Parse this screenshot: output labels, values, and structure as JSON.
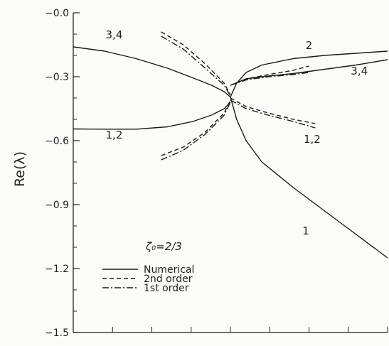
{
  "chart_data": {
    "type": "line",
    "title": "",
    "xlabel": "",
    "ylabel": "Re(λ)",
    "ylim": [
      -1.5,
      0.0
    ],
    "yticks": [
      0.0,
      -0.3,
      -0.6,
      -0.9,
      -1.2,
      -1.5
    ],
    "ytick_labels": [
      "−0.0",
      "−0.3",
      "−0.6",
      "−0.9",
      "−1.2",
      "−1.5"
    ],
    "xlim": [
      0,
      1
    ],
    "x_minor_ticks": 8,
    "annotation": "ζ₀=2/3",
    "legend": {
      "position": "lower-left",
      "entries": [
        {
          "label": "Numerical",
          "style": "solid"
        },
        {
          "label": "2nd order",
          "style": "dashed"
        },
        {
          "label": "1st order",
          "style": "dashdot"
        }
      ]
    },
    "curve_labels": [
      {
        "text": "3,4",
        "x": 0.13,
        "y": -0.12
      },
      {
        "text": "2",
        "x": 0.75,
        "y": -0.17
      },
      {
        "text": "3,4",
        "x": 0.91,
        "y": -0.29
      },
      {
        "text": "1,2",
        "x": 0.13,
        "y": -0.59
      },
      {
        "text": "1,2",
        "x": 0.76,
        "y": -0.61
      },
      {
        "text": "1",
        "x": 0.74,
        "y": -1.04
      }
    ],
    "series": [
      {
        "style": "solid",
        "x": [
          0.0,
          0.1,
          0.2,
          0.3,
          0.38,
          0.44,
          0.48,
          0.5
        ],
        "y": [
          -0.16,
          -0.18,
          -0.215,
          -0.26,
          -0.305,
          -0.34,
          -0.37,
          -0.395
        ]
      },
      {
        "style": "solid",
        "x": [
          0.0,
          0.1,
          0.2,
          0.3,
          0.38,
          0.44,
          0.48,
          0.5
        ],
        "y": [
          -0.545,
          -0.546,
          -0.546,
          -0.535,
          -0.51,
          -0.48,
          -0.45,
          -0.42
        ]
      },
      {
        "style": "solid",
        "x": [
          0.5,
          0.52,
          0.55,
          0.6,
          0.7,
          0.8,
          0.9,
          1.0
        ],
        "y": [
          -0.395,
          -0.33,
          -0.28,
          -0.245,
          -0.215,
          -0.2,
          -0.19,
          -0.18
        ]
      },
      {
        "style": "solid",
        "x": [
          0.5,
          0.55,
          0.6,
          0.7,
          0.8,
          0.9,
          1.0
        ],
        "y": [
          -0.34,
          -0.31,
          -0.3,
          -0.285,
          -0.265,
          -0.245,
          -0.22
        ]
      },
      {
        "style": "solid",
        "x": [
          0.5,
          0.52,
          0.55,
          0.6,
          0.7,
          0.8,
          0.9,
          1.0
        ],
        "y": [
          -0.395,
          -0.5,
          -0.6,
          -0.7,
          -0.82,
          -0.93,
          -1.04,
          -1.15
        ]
      },
      {
        "style": "dashed",
        "x": [
          0.28,
          0.35,
          0.42,
          0.48,
          0.5
        ],
        "y": [
          -0.09,
          -0.15,
          -0.24,
          -0.33,
          -0.385
        ]
      },
      {
        "style": "dashdot",
        "x": [
          0.28,
          0.35,
          0.42,
          0.48,
          0.5
        ],
        "y": [
          -0.11,
          -0.17,
          -0.26,
          -0.34,
          -0.39
        ]
      },
      {
        "style": "dashed",
        "x": [
          0.28,
          0.35,
          0.42,
          0.48,
          0.5
        ],
        "y": [
          -0.67,
          -0.63,
          -0.56,
          -0.47,
          -0.41
        ]
      },
      {
        "style": "dashdot",
        "x": [
          0.28,
          0.35,
          0.42,
          0.48,
          0.5
        ],
        "y": [
          -0.69,
          -0.645,
          -0.57,
          -0.48,
          -0.42
        ]
      },
      {
        "style": "dashed",
        "x": [
          0.5,
          0.55,
          0.62,
          0.7,
          0.75
        ],
        "y": [
          -0.34,
          -0.31,
          -0.29,
          -0.27,
          -0.25
        ]
      },
      {
        "style": "dashdot",
        "x": [
          0.5,
          0.55,
          0.62,
          0.7,
          0.75
        ],
        "y": [
          -0.34,
          -0.315,
          -0.3,
          -0.29,
          -0.28
        ]
      },
      {
        "style": "dashed",
        "x": [
          0.5,
          0.55,
          0.62,
          0.7,
          0.77
        ],
        "y": [
          -0.4,
          -0.44,
          -0.47,
          -0.5,
          -0.52
        ]
      },
      {
        "style": "dashdot",
        "x": [
          0.5,
          0.55,
          0.62,
          0.7,
          0.77
        ],
        "y": [
          -0.41,
          -0.45,
          -0.48,
          -0.51,
          -0.54
        ]
      }
    ]
  }
}
